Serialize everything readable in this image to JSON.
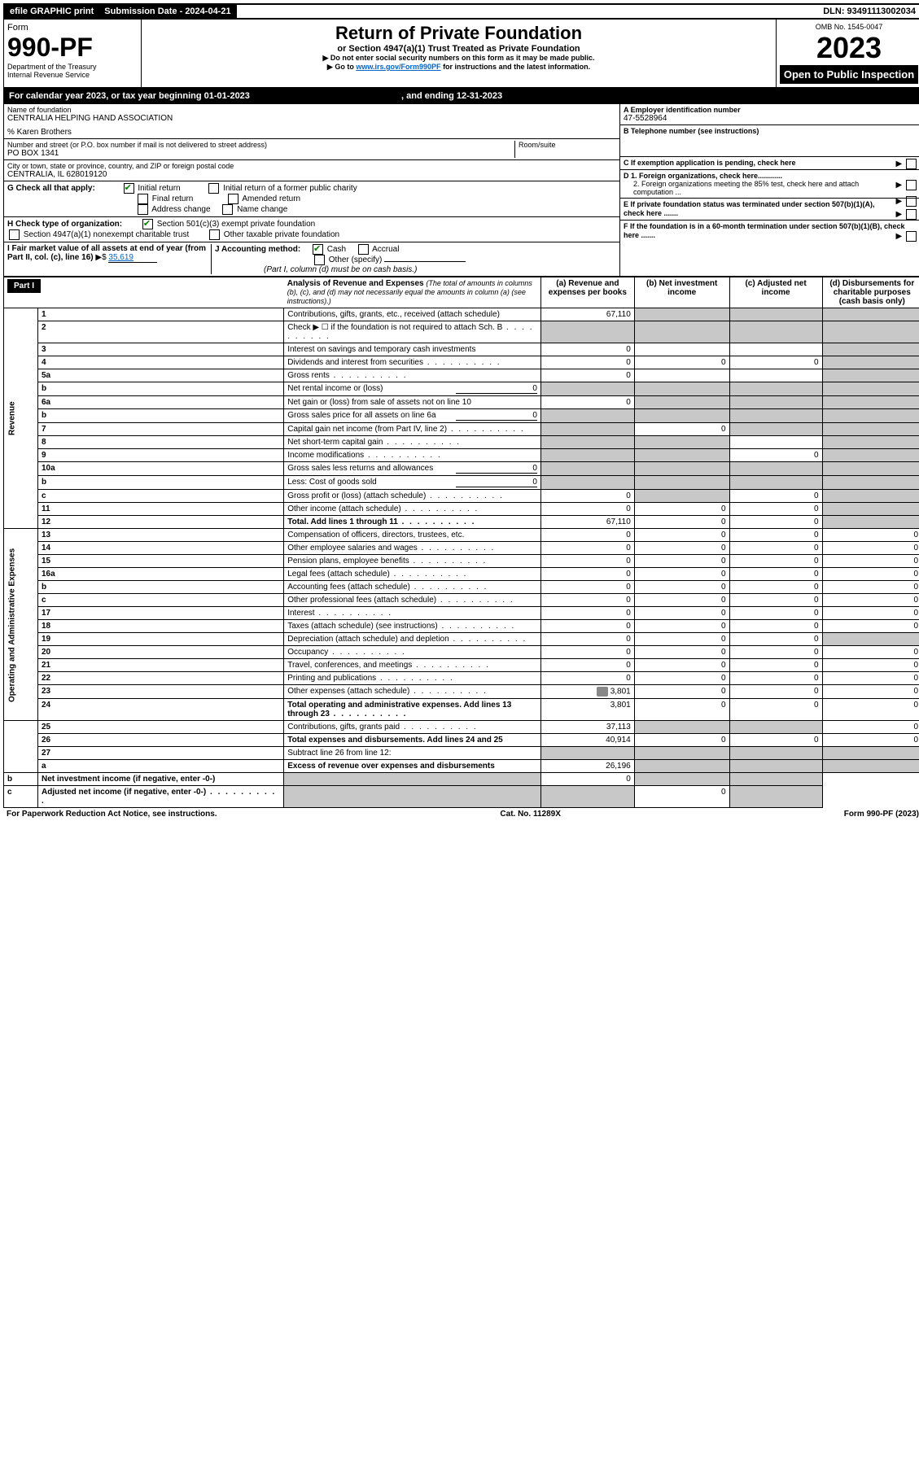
{
  "topbar": {
    "efile": "efile GRAPHIC print",
    "submission_label": "Submission Date - 2024-04-21",
    "dln": "DLN: 93491113002034"
  },
  "header": {
    "form_label": "Form",
    "form_number": "990-PF",
    "dept": "Department of the Treasury",
    "irs": "Internal Revenue Service",
    "title": "Return of Private Foundation",
    "subtitle": "or Section 4947(a)(1) Trust Treated as Private Foundation",
    "note1": "▶ Do not enter social security numbers on this form as it may be made public.",
    "note2_pre": "▶ Go to ",
    "note2_link": "www.irs.gov/Form990PF",
    "note2_post": " for instructions and the latest information.",
    "omb": "OMB No. 1545-0047",
    "year": "2023",
    "open": "Open to Public Inspection"
  },
  "calyear": {
    "text_a": "For calendar year 2023, or tax year beginning 01-01-2023",
    "text_b": ", and ending 12-31-2023"
  },
  "org": {
    "name_label": "Name of foundation",
    "name": "CENTRALIA HELPING HAND ASSOCIATION",
    "care_of": "% Karen Brothers",
    "addr_label": "Number and street (or P.O. box number if mail is not delivered to street address)",
    "addr": "PO BOX 1341",
    "room_label": "Room/suite",
    "city_label": "City or town, state or province, country, and ZIP or foreign postal code",
    "city": "CENTRALIA, IL  628019120",
    "ein_label": "A Employer identification number",
    "ein": "47-5528964",
    "phone_label": "B Telephone number (see instructions)",
    "c_label": "C If exemption application is pending, check here",
    "d1": "D 1. Foreign organizations, check here............",
    "d2": "2. Foreign organizations meeting the 85% test, check here and attach computation ...",
    "e": "E  If private foundation status was terminated under section 507(b)(1)(A), check here .......",
    "f": "F  If the foundation is in a 60-month termination under section 507(b)(1)(B), check here .......",
    "g_label": "G Check all that apply:",
    "g_initial": "Initial return",
    "g_initial_former": "Initial return of a former public charity",
    "g_final": "Final return",
    "g_amended": "Amended return",
    "g_address": "Address change",
    "g_name": "Name change",
    "h_label": "H Check type of organization:",
    "h_501c3": "Section 501(c)(3) exempt private foundation",
    "h_4947": "Section 4947(a)(1) nonexempt charitable trust",
    "h_other": "Other taxable private foundation",
    "i_label": "I Fair market value of all assets at end of year (from Part II, col. (c), line 16)",
    "i_prefix": "▶$ ",
    "i_value": "35,619",
    "j_label": "J Accounting method:",
    "j_cash": "Cash",
    "j_accrual": "Accrual",
    "j_other": "Other (specify)",
    "j_note": "(Part I, column (d) must be on cash basis.)"
  },
  "part1": {
    "label": "Part I",
    "title": "Analysis of Revenue and Expenses",
    "title_note": " (The total of amounts in columns (b), (c), and (d) may not necessarily equal the amounts in column (a) (see instructions).)",
    "col_a": "(a) Revenue and expenses per books",
    "col_b": "(b) Net investment income",
    "col_c": "(c) Adjusted net income",
    "col_d": "(d) Disbursements for charitable purposes (cash basis only)"
  },
  "sections": {
    "revenue": "Revenue",
    "expenses": "Operating and Administrative Expenses"
  },
  "rows": [
    {
      "n": "1",
      "d": "Contributions, gifts, grants, etc., received (attach schedule)",
      "a": "67,110",
      "b": "",
      "c": "",
      "dd": "",
      "bg": [
        "",
        "g",
        "g",
        "g"
      ]
    },
    {
      "n": "2",
      "d": "Check ▶ ☐ if the foundation is not required to attach Sch. B",
      "a": "",
      "b": "",
      "c": "",
      "dd": "",
      "bg": [
        "g",
        "g",
        "g",
        "g"
      ],
      "dots": true
    },
    {
      "n": "3",
      "d": "Interest on savings and temporary cash investments",
      "a": "0",
      "b": "",
      "c": "",
      "dd": "",
      "bg": [
        "",
        "",
        "",
        "g"
      ]
    },
    {
      "n": "4",
      "d": "Dividends and interest from securities",
      "a": "0",
      "b": "0",
      "c": "0",
      "dd": "",
      "bg": [
        "",
        "",
        "",
        "g"
      ],
      "dots": true
    },
    {
      "n": "5a",
      "d": "Gross rents",
      "a": "0",
      "b": "",
      "c": "",
      "dd": "",
      "bg": [
        "",
        "",
        "",
        "g"
      ],
      "dots": true
    },
    {
      "n": "b",
      "d": "Net rental income or (loss)",
      "a": "",
      "b": "",
      "c": "",
      "dd": "",
      "bg": [
        "g",
        "g",
        "g",
        "g"
      ],
      "inline": "0"
    },
    {
      "n": "6a",
      "d": "Net gain or (loss) from sale of assets not on line 10",
      "a": "0",
      "b": "",
      "c": "",
      "dd": "",
      "bg": [
        "",
        "g",
        "g",
        "g"
      ]
    },
    {
      "n": "b",
      "d": "Gross sales price for all assets on line 6a",
      "a": "",
      "b": "",
      "c": "",
      "dd": "",
      "bg": [
        "g",
        "g",
        "g",
        "g"
      ],
      "inline": "0"
    },
    {
      "n": "7",
      "d": "Capital gain net income (from Part IV, line 2)",
      "a": "",
      "b": "0",
      "c": "",
      "dd": "",
      "bg": [
        "g",
        "",
        "g",
        "g"
      ],
      "dots": true
    },
    {
      "n": "8",
      "d": "Net short-term capital gain",
      "a": "",
      "b": "",
      "c": "",
      "dd": "",
      "bg": [
        "g",
        "g",
        "",
        "g"
      ],
      "dots": true
    },
    {
      "n": "9",
      "d": "Income modifications",
      "a": "",
      "b": "",
      "c": "0",
      "dd": "",
      "bg": [
        "g",
        "g",
        "",
        "g"
      ],
      "dots": true
    },
    {
      "n": "10a",
      "d": "Gross sales less returns and allowances",
      "a": "",
      "b": "",
      "c": "",
      "dd": "",
      "bg": [
        "g",
        "g",
        "g",
        "g"
      ],
      "inline": "0"
    },
    {
      "n": "b",
      "d": "Less: Cost of goods sold",
      "a": "",
      "b": "",
      "c": "",
      "dd": "",
      "bg": [
        "g",
        "g",
        "g",
        "g"
      ],
      "inline": "0",
      "dots": true
    },
    {
      "n": "c",
      "d": "Gross profit or (loss) (attach schedule)",
      "a": "0",
      "b": "",
      "c": "0",
      "dd": "",
      "bg": [
        "",
        "g",
        "",
        "g"
      ],
      "dots": true
    },
    {
      "n": "11",
      "d": "Other income (attach schedule)",
      "a": "0",
      "b": "0",
      "c": "0",
      "dd": "",
      "bg": [
        "",
        "",
        "",
        "g"
      ],
      "dots": true
    },
    {
      "n": "12",
      "d": "Total. Add lines 1 through 11",
      "a": "67,110",
      "b": "0",
      "c": "0",
      "dd": "",
      "bg": [
        "",
        "",
        "",
        "g"
      ],
      "bold": true,
      "dots": true
    },
    {
      "n": "13",
      "d": "Compensation of officers, directors, trustees, etc.",
      "a": "0",
      "b": "0",
      "c": "0",
      "dd": "0"
    },
    {
      "n": "14",
      "d": "Other employee salaries and wages",
      "a": "0",
      "b": "0",
      "c": "0",
      "dd": "0",
      "dots": true
    },
    {
      "n": "15",
      "d": "Pension plans, employee benefits",
      "a": "0",
      "b": "0",
      "c": "0",
      "dd": "0",
      "dots": true
    },
    {
      "n": "16a",
      "d": "Legal fees (attach schedule)",
      "a": "0",
      "b": "0",
      "c": "0",
      "dd": "0",
      "dots": true
    },
    {
      "n": "b",
      "d": "Accounting fees (attach schedule)",
      "a": "0",
      "b": "0",
      "c": "0",
      "dd": "0",
      "dots": true
    },
    {
      "n": "c",
      "d": "Other professional fees (attach schedule)",
      "a": "0",
      "b": "0",
      "c": "0",
      "dd": "0",
      "dots": true
    },
    {
      "n": "17",
      "d": "Interest",
      "a": "0",
      "b": "0",
      "c": "0",
      "dd": "0",
      "dots": true
    },
    {
      "n": "18",
      "d": "Taxes (attach schedule) (see instructions)",
      "a": "0",
      "b": "0",
      "c": "0",
      "dd": "0",
      "dots": true
    },
    {
      "n": "19",
      "d": "Depreciation (attach schedule) and depletion",
      "a": "0",
      "b": "0",
      "c": "0",
      "dd": "",
      "bg": [
        "",
        "",
        "",
        "g"
      ],
      "dots": true
    },
    {
      "n": "20",
      "d": "Occupancy",
      "a": "0",
      "b": "0",
      "c": "0",
      "dd": "0",
      "dots": true
    },
    {
      "n": "21",
      "d": "Travel, conferences, and meetings",
      "a": "0",
      "b": "0",
      "c": "0",
      "dd": "0",
      "dots": true
    },
    {
      "n": "22",
      "d": "Printing and publications",
      "a": "0",
      "b": "0",
      "c": "0",
      "dd": "0",
      "dots": true
    },
    {
      "n": "23",
      "d": "Other expenses (attach schedule)",
      "a": "3,801",
      "b": "0",
      "c": "0",
      "dd": "0",
      "dots": true,
      "icon": true
    },
    {
      "n": "24",
      "d": "Total operating and administrative expenses. Add lines 13 through 23",
      "a": "3,801",
      "b": "0",
      "c": "0",
      "dd": "0",
      "bold": true,
      "dots": true
    },
    {
      "n": "25",
      "d": "Contributions, gifts, grants paid",
      "a": "37,113",
      "b": "",
      "c": "",
      "dd": "0",
      "bg": [
        "",
        "g",
        "g",
        ""
      ],
      "dots": true
    },
    {
      "n": "26",
      "d": "Total expenses and disbursements. Add lines 24 and 25",
      "a": "40,914",
      "b": "0",
      "c": "0",
      "dd": "0",
      "bold": true
    },
    {
      "n": "27",
      "d": "Subtract line 26 from line 12:",
      "a": "",
      "b": "",
      "c": "",
      "dd": "",
      "bg": [
        "g",
        "g",
        "g",
        "g"
      ]
    },
    {
      "n": "a",
      "d": "Excess of revenue over expenses and disbursements",
      "a": "26,196",
      "b": "",
      "c": "",
      "dd": "",
      "bg": [
        "",
        "g",
        "g",
        "g"
      ],
      "bold": true
    },
    {
      "n": "b",
      "d": "Net investment income (if negative, enter -0-)",
      "a": "",
      "b": "0",
      "c": "",
      "dd": "",
      "bg": [
        "g",
        "",
        "g",
        "g"
      ],
      "bold": true
    },
    {
      "n": "c",
      "d": "Adjusted net income (if negative, enter -0-)",
      "a": "",
      "b": "",
      "c": "0",
      "dd": "",
      "bg": [
        "g",
        "g",
        "",
        "g"
      ],
      "bold": true,
      "dots": true
    }
  ],
  "footer": {
    "left": "For Paperwork Reduction Act Notice, see instructions.",
    "mid": "Cat. No. 11289X",
    "right": "Form 990-PF (2023)"
  },
  "colors": {
    "link": "#0066cc",
    "grey": "#c8c8c8",
    "check": "#008000"
  }
}
